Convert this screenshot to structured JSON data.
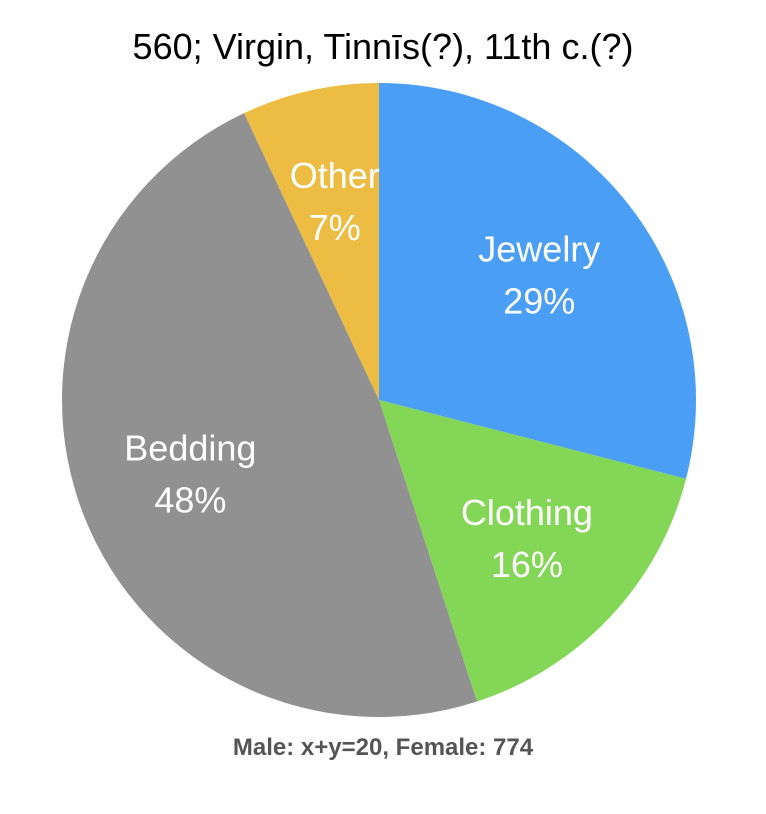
{
  "chart_data": {
    "type": "pie",
    "title": "560; Virgin, Tinnīs(?), 11th c.(?)",
    "caption": "Male: x+y=20, Female: 774",
    "start_angle_deg": 0,
    "direction": "clockwise",
    "slices": [
      {
        "name": "Jewelry",
        "value": 29,
        "label": "29%",
        "color": "#4A9FF5"
      },
      {
        "name": "Clothing",
        "value": 16,
        "label": "16%",
        "color": "#83D656"
      },
      {
        "name": "Bedding",
        "value": 48,
        "label": "48%",
        "color": "#919191"
      },
      {
        "name": "Other",
        "value": 7,
        "label": "7%",
        "color": "#EDBD43"
      }
    ]
  }
}
